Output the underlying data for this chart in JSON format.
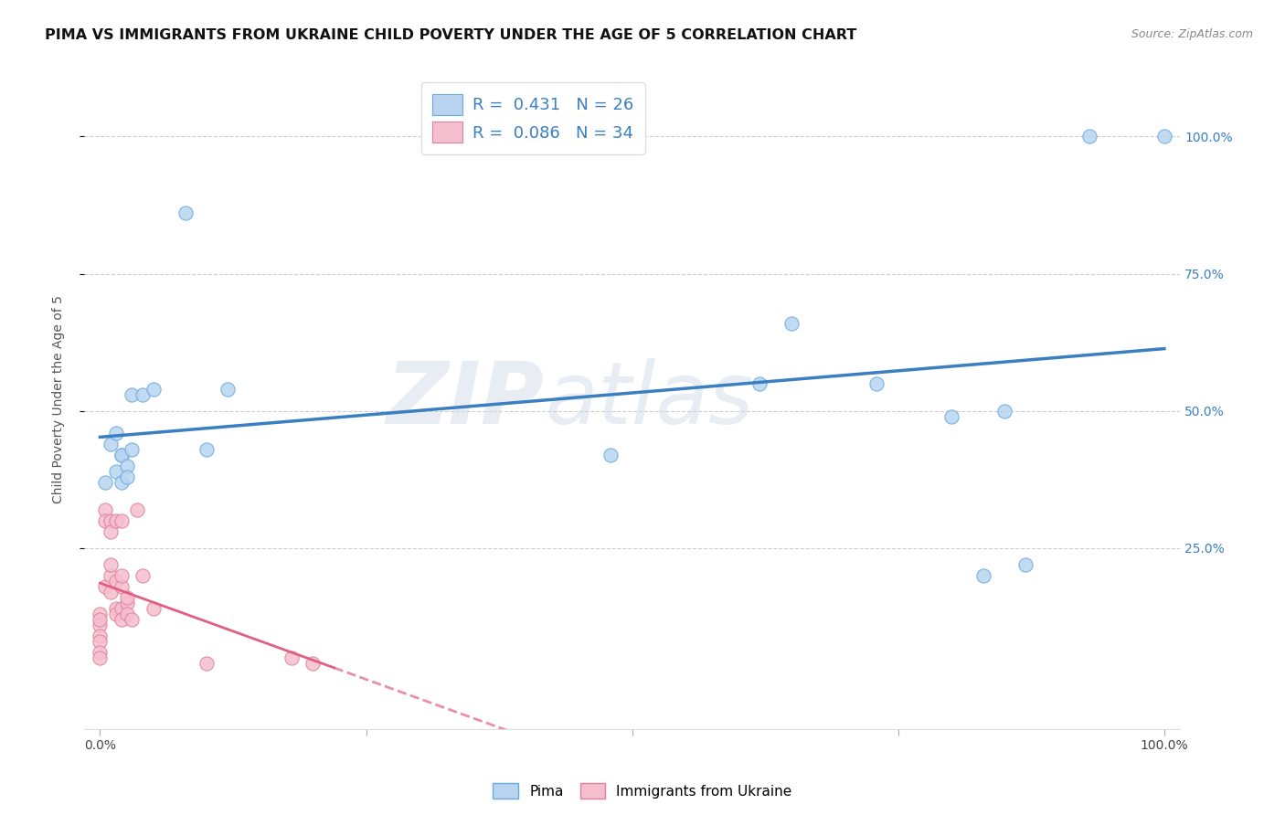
{
  "title": "PIMA VS IMMIGRANTS FROM UKRAINE CHILD POVERTY UNDER THE AGE OF 5 CORRELATION CHART",
  "source": "Source: ZipAtlas.com",
  "ylabel": "Child Poverty Under the Age of 5",
  "watermark": "ZIPatlas",
  "pima_R": 0.431,
  "pima_N": 26,
  "ukraine_R": 0.086,
  "ukraine_N": 34,
  "pima_color": "#b8d4f0",
  "pima_dot_edge": "#6aaae0",
  "pima_line_color": "#3a7fc1",
  "ukraine_color": "#f5bece",
  "ukraine_dot_edge": "#e08098",
  "ukraine_line_color": "#e06080",
  "background_color": "#ffffff",
  "grid_color": "#c8c8c8",
  "title_fontsize": 11.5,
  "axis_label_fontsize": 10,
  "tick_fontsize": 10,
  "legend_fontsize": 13,
  "pima_scatter_x": [
    0.005,
    0.01,
    0.015,
    0.015,
    0.02,
    0.02,
    0.02,
    0.025,
    0.025,
    0.03,
    0.03,
    0.04,
    0.05,
    0.08,
    0.1,
    0.12,
    0.48,
    0.62,
    0.65,
    0.73,
    0.8,
    0.83,
    0.85,
    0.87,
    0.93,
    1.0
  ],
  "pima_scatter_y": [
    0.37,
    0.44,
    0.39,
    0.46,
    0.37,
    0.42,
    0.42,
    0.4,
    0.38,
    0.43,
    0.53,
    0.53,
    0.54,
    0.86,
    0.43,
    0.54,
    0.42,
    0.55,
    0.66,
    0.55,
    0.49,
    0.2,
    0.5,
    0.22,
    1.0,
    1.0
  ],
  "ukraine_scatter_x": [
    0.0,
    0.0,
    0.0,
    0.0,
    0.0,
    0.0,
    0.0,
    0.005,
    0.005,
    0.005,
    0.01,
    0.01,
    0.01,
    0.01,
    0.01,
    0.015,
    0.015,
    0.015,
    0.015,
    0.02,
    0.02,
    0.02,
    0.02,
    0.02,
    0.025,
    0.025,
    0.025,
    0.03,
    0.035,
    0.04,
    0.05,
    0.1,
    0.18,
    0.2
  ],
  "ukraine_scatter_y": [
    0.13,
    0.11,
    0.09,
    0.08,
    0.06,
    0.05,
    0.12,
    0.32,
    0.3,
    0.18,
    0.3,
    0.28,
    0.2,
    0.17,
    0.22,
    0.3,
    0.19,
    0.14,
    0.13,
    0.3,
    0.18,
    0.2,
    0.14,
    0.12,
    0.15,
    0.13,
    0.16,
    0.12,
    0.32,
    0.2,
    0.14,
    0.04,
    0.05,
    0.04
  ],
  "right_ytick_labels": [
    "100.0%",
    "75.0%",
    "50.0%",
    "25.0%"
  ],
  "right_ytick_values": [
    1.0,
    0.75,
    0.5,
    0.25
  ],
  "ylim_min": -0.08,
  "ylim_max": 1.12,
  "xlim_min": -0.015,
  "xlim_max": 1.015
}
